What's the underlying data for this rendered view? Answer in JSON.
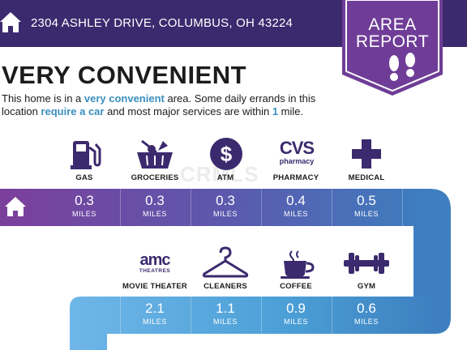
{
  "header": {
    "address": "2304 ASHLEY DRIVE, COLUMBUS, OH 43224",
    "badge_line1": "AREA",
    "badge_line2": "REPORT"
  },
  "title": "VERY CONVENIENT",
  "summary": {
    "part1": "This home is in a ",
    "highlight1": "very convenient",
    "part2": " area. Some daily errands in this location ",
    "highlight2": "require a car",
    "part3": " and most major services are within ",
    "highlight3": "1",
    "part4": " mile."
  },
  "watermark": "CRMLS",
  "amenities_row1": [
    {
      "label": "GAS",
      "distance": "0.3",
      "unit": "MILES",
      "icon": "gas-pump-icon"
    },
    {
      "label": "GROCERIES",
      "distance": "0.3",
      "unit": "MILES",
      "icon": "grocery-basket-icon"
    },
    {
      "label": "ATM",
      "distance": "0.3",
      "unit": "MILES",
      "icon": "dollar-icon"
    },
    {
      "label": "PHARMACY",
      "distance": "0.4",
      "unit": "MILES",
      "icon": "cvs-logo-icon"
    },
    {
      "label": "MEDICAL",
      "distance": "0.5",
      "unit": "MILES",
      "icon": "medical-cross-icon"
    }
  ],
  "amenities_row2": [
    {
      "label": "MOVIE THEATER",
      "distance": "2.1",
      "unit": "MILES",
      "icon": "amc-logo-icon"
    },
    {
      "label": "CLEANERS",
      "distance": "1.1",
      "unit": "MILES",
      "icon": "hanger-icon"
    },
    {
      "label": "COFFEE",
      "distance": "0.9",
      "unit": "MILES",
      "icon": "coffee-cup-icon"
    },
    {
      "label": "GYM",
      "distance": "0.6",
      "unit": "MILES",
      "icon": "dumbbell-icon"
    }
  ],
  "logos": {
    "cvs_main": "CVS",
    "cvs_sub": "pharmacy",
    "amc_main": "amc",
    "amc_sub": "THEATRES"
  },
  "colors": {
    "header": "#3b2a6e",
    "badge": "#6f3d97",
    "purple": "#7b3f9c",
    "blue": "#3d7fc0",
    "light_blue": "#4b9fd6",
    "icon": "#3b2a6e"
  }
}
